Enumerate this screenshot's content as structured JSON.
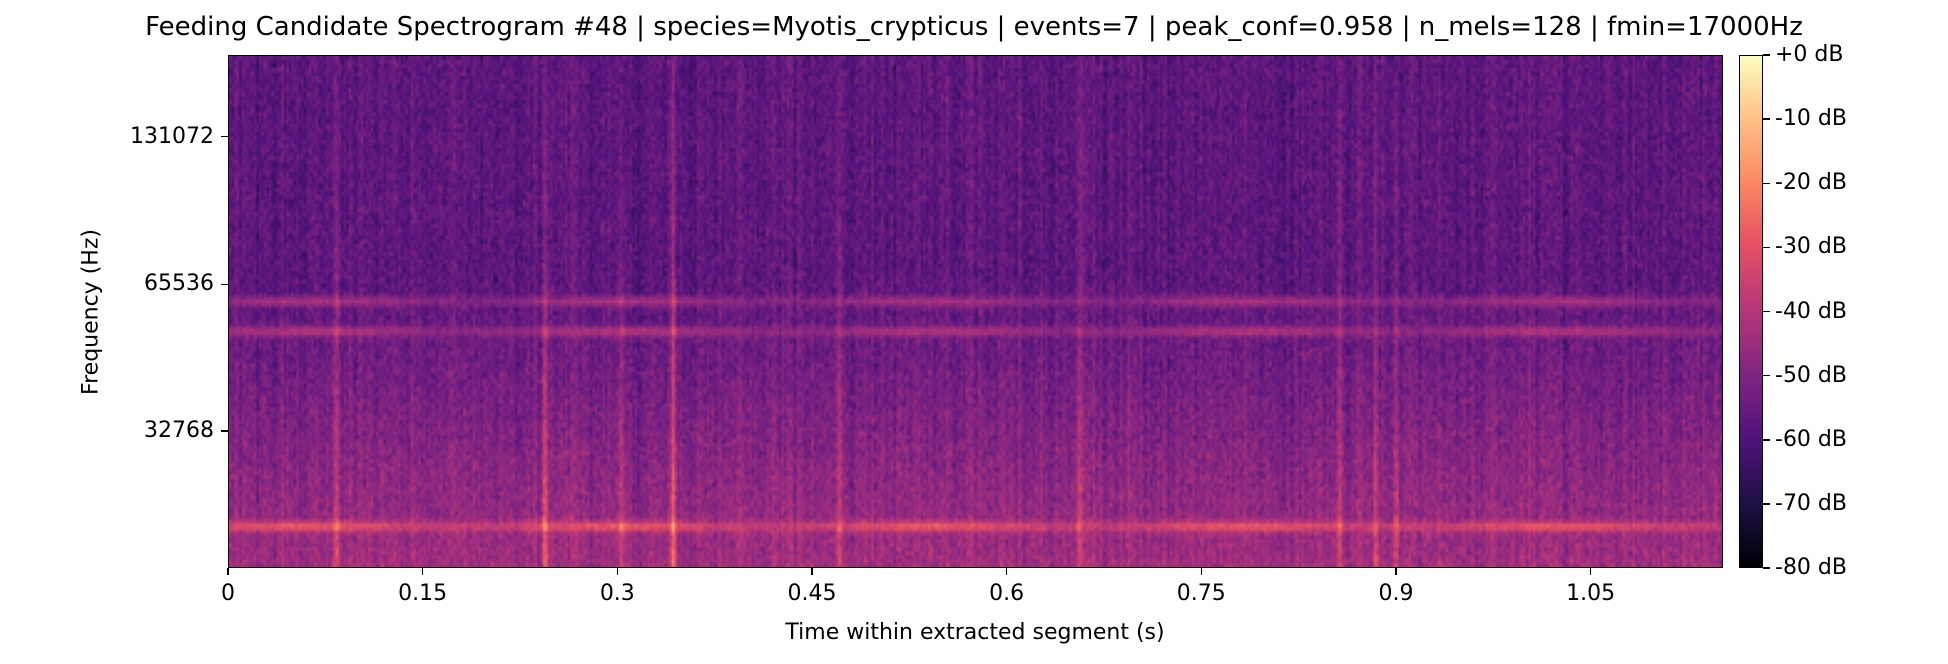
{
  "chart_data": {
    "type": "heatmap",
    "title": "Feeding Candidate Spectrogram #48 | species=Myotis_crypticus | events=7 | peak_conf=0.958 | n_mels=128 | fmin=17000Hz",
    "xlabel": "Time within extracted segment (s)",
    "ylabel": "Frequency (Hz)",
    "x_ticks": [
      {
        "value": 0,
        "label": "0"
      },
      {
        "value": 0.15,
        "label": "0.15"
      },
      {
        "value": 0.3,
        "label": "0.3"
      },
      {
        "value": 0.45,
        "label": "0.45"
      },
      {
        "value": 0.6,
        "label": "0.6"
      },
      {
        "value": 0.75,
        "label": "0.75"
      },
      {
        "value": 0.9,
        "label": "0.9"
      },
      {
        "value": 1.05,
        "label": "1.05"
      }
    ],
    "y_ticks": [
      {
        "value": 131072,
        "label": "131072"
      },
      {
        "value": 65536,
        "label": "65536"
      },
      {
        "value": 32768,
        "label": "32768"
      }
    ],
    "xlim": [
      0,
      1.152
    ],
    "ylim_hz": [
      17000,
      192000
    ],
    "y_scale": "mel",
    "colorbar": {
      "colormap": "magma",
      "range_db": [
        -80,
        0
      ],
      "ticks": [
        "+0 dB",
        "-10 dB",
        "-20 dB",
        "-30 dB",
        "-40 dB",
        "-50 dB",
        "-60 dB",
        "-70 dB",
        "-80 dB"
      ]
    },
    "features": {
      "horizontal_bands_hz": [
        {
          "freq": 20500,
          "level_db": -28
        },
        {
          "freq": 52000,
          "level_db": -40
        },
        {
          "freq": 60000,
          "level_db": -42
        }
      ],
      "vertical_call_times_s": [
        0.082,
        0.243,
        0.302,
        0.342,
        0.47,
        0.655,
        0.856,
        0.884,
        0.9
      ],
      "background_level_db": -57,
      "low_freq_level_db": -44
    }
  }
}
